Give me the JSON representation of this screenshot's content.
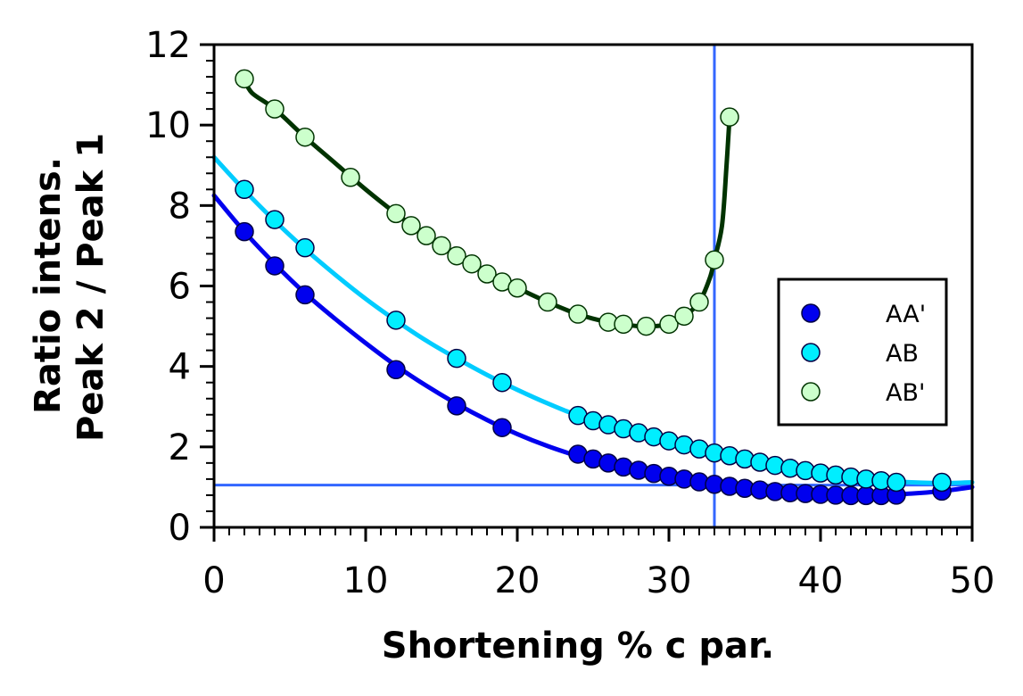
{
  "chart_data": {
    "type": "scatter",
    "title": "",
    "xlabel": "Shortening % c par.",
    "ylabel_line1": "Ratio intens.",
    "ylabel_line2": "Peak 2 / Peak 1",
    "xlim": [
      0,
      50
    ],
    "ylim": [
      0,
      12
    ],
    "x_ticks": [
      0,
      10,
      20,
      30,
      40,
      50
    ],
    "x_tick_labels": [
      "0",
      "10",
      "20",
      "30",
      "40",
      "50"
    ],
    "y_ticks": [
      0,
      2,
      4,
      6,
      8,
      10,
      12
    ],
    "y_tick_labels": [
      "0",
      "2",
      "4",
      "6",
      "8",
      "10",
      "12"
    ],
    "grid": false,
    "legend_position": "center-right",
    "reference_lines": {
      "vertical_x": 33,
      "horizontal_y": 1.05,
      "color": "#3366ff"
    },
    "series": [
      {
        "name": "AA'",
        "marker_color": "#0000ee",
        "line_color": "#0000ee",
        "points": [
          {
            "x": 2,
            "y": 7.35
          },
          {
            "x": 4,
            "y": 6.5
          },
          {
            "x": 6,
            "y": 5.78
          },
          {
            "x": 12,
            "y": 3.92
          },
          {
            "x": 16,
            "y": 3.02
          },
          {
            "x": 19,
            "y": 2.48
          },
          {
            "x": 24,
            "y": 1.82
          },
          {
            "x": 25,
            "y": 1.7
          },
          {
            "x": 26,
            "y": 1.6
          },
          {
            "x": 27,
            "y": 1.5
          },
          {
            "x": 28,
            "y": 1.42
          },
          {
            "x": 29,
            "y": 1.34
          },
          {
            "x": 30,
            "y": 1.27
          },
          {
            "x": 31,
            "y": 1.2
          },
          {
            "x": 32,
            "y": 1.13
          },
          {
            "x": 33,
            "y": 1.07
          },
          {
            "x": 34,
            "y": 1.02
          },
          {
            "x": 35,
            "y": 0.97
          },
          {
            "x": 36,
            "y": 0.93
          },
          {
            "x": 37,
            "y": 0.89
          },
          {
            "x": 38,
            "y": 0.86
          },
          {
            "x": 39,
            "y": 0.84
          },
          {
            "x": 40,
            "y": 0.82
          },
          {
            "x": 41,
            "y": 0.8
          },
          {
            "x": 42,
            "y": 0.79
          },
          {
            "x": 43,
            "y": 0.79
          },
          {
            "x": 44,
            "y": 0.79
          },
          {
            "x": 45,
            "y": 0.8
          },
          {
            "x": 48,
            "y": 0.9
          }
        ],
        "fit_curve": [
          {
            "x": 0,
            "y": 8.25
          },
          {
            "x": 2,
            "y": 7.35
          },
          {
            "x": 4,
            "y": 6.55
          },
          {
            "x": 6,
            "y": 5.82
          },
          {
            "x": 8,
            "y": 5.18
          },
          {
            "x": 10,
            "y": 4.58
          },
          {
            "x": 12,
            "y": 4.02
          },
          {
            "x": 14,
            "y": 3.52
          },
          {
            "x": 16,
            "y": 3.07
          },
          {
            "x": 18,
            "y": 2.67
          },
          {
            "x": 20,
            "y": 2.32
          },
          {
            "x": 22,
            "y": 2.02
          },
          {
            "x": 24,
            "y": 1.77
          },
          {
            "x": 26,
            "y": 1.56
          },
          {
            "x": 28,
            "y": 1.39
          },
          {
            "x": 30,
            "y": 1.24
          },
          {
            "x": 32,
            "y": 1.12
          },
          {
            "x": 34,
            "y": 1.02
          },
          {
            "x": 36,
            "y": 0.94
          },
          {
            "x": 38,
            "y": 0.88
          },
          {
            "x": 40,
            "y": 0.83
          },
          {
            "x": 42,
            "y": 0.81
          },
          {
            "x": 44,
            "y": 0.81
          },
          {
            "x": 46,
            "y": 0.84
          },
          {
            "x": 48,
            "y": 0.9
          },
          {
            "x": 50,
            "y": 1.0
          }
        ]
      },
      {
        "name": "AB",
        "marker_color": "#00eeff",
        "line_color": "#00ccff",
        "points": [
          {
            "x": 2,
            "y": 8.4
          },
          {
            "x": 4,
            "y": 7.65
          },
          {
            "x": 6,
            "y": 6.95
          },
          {
            "x": 12,
            "y": 5.15
          },
          {
            "x": 16,
            "y": 4.2
          },
          {
            "x": 19,
            "y": 3.6
          },
          {
            "x": 24,
            "y": 2.78
          },
          {
            "x": 25,
            "y": 2.65
          },
          {
            "x": 26,
            "y": 2.55
          },
          {
            "x": 27,
            "y": 2.45
          },
          {
            "x": 28,
            "y": 2.35
          },
          {
            "x": 29,
            "y": 2.25
          },
          {
            "x": 30,
            "y": 2.15
          },
          {
            "x": 31,
            "y": 2.05
          },
          {
            "x": 32,
            "y": 1.95
          },
          {
            "x": 33,
            "y": 1.85
          },
          {
            "x": 34,
            "y": 1.78
          },
          {
            "x": 35,
            "y": 1.7
          },
          {
            "x": 36,
            "y": 1.62
          },
          {
            "x": 37,
            "y": 1.54
          },
          {
            "x": 38,
            "y": 1.47
          },
          {
            "x": 39,
            "y": 1.41
          },
          {
            "x": 40,
            "y": 1.35
          },
          {
            "x": 41,
            "y": 1.3
          },
          {
            "x": 42,
            "y": 1.25
          },
          {
            "x": 43,
            "y": 1.2
          },
          {
            "x": 44,
            "y": 1.16
          },
          {
            "x": 45,
            "y": 1.12
          },
          {
            "x": 48,
            "y": 1.12
          }
        ],
        "fit_curve": [
          {
            "x": 0,
            "y": 9.2
          },
          {
            "x": 2,
            "y": 8.38
          },
          {
            "x": 4,
            "y": 7.62
          },
          {
            "x": 6,
            "y": 6.92
          },
          {
            "x": 8,
            "y": 6.28
          },
          {
            "x": 10,
            "y": 5.68
          },
          {
            "x": 12,
            "y": 5.14
          },
          {
            "x": 14,
            "y": 4.64
          },
          {
            "x": 16,
            "y": 4.2
          },
          {
            "x": 18,
            "y": 3.79
          },
          {
            "x": 20,
            "y": 3.42
          },
          {
            "x": 22,
            "y": 3.08
          },
          {
            "x": 24,
            "y": 2.78
          },
          {
            "x": 26,
            "y": 2.52
          },
          {
            "x": 28,
            "y": 2.3
          },
          {
            "x": 30,
            "y": 2.12
          },
          {
            "x": 32,
            "y": 1.96
          },
          {
            "x": 34,
            "y": 1.78
          },
          {
            "x": 36,
            "y": 1.62
          },
          {
            "x": 38,
            "y": 1.47
          },
          {
            "x": 40,
            "y": 1.35
          },
          {
            "x": 42,
            "y": 1.25
          },
          {
            "x": 44,
            "y": 1.17
          },
          {
            "x": 46,
            "y": 1.12
          },
          {
            "x": 48,
            "y": 1.1
          },
          {
            "x": 50,
            "y": 1.12
          }
        ]
      },
      {
        "name": "AB'",
        "marker_color": "#ccffcc",
        "line_color": "#003300",
        "points": [
          {
            "x": 2,
            "y": 11.15
          },
          {
            "x": 4,
            "y": 10.4
          },
          {
            "x": 6,
            "y": 9.7
          },
          {
            "x": 9,
            "y": 8.7
          },
          {
            "x": 12,
            "y": 7.8
          },
          {
            "x": 13,
            "y": 7.5
          },
          {
            "x": 14,
            "y": 7.25
          },
          {
            "x": 15,
            "y": 7.0
          },
          {
            "x": 16,
            "y": 6.75
          },
          {
            "x": 17,
            "y": 6.55
          },
          {
            "x": 18,
            "y": 6.3
          },
          {
            "x": 19,
            "y": 6.1
          },
          {
            "x": 20,
            "y": 5.95
          },
          {
            "x": 22,
            "y": 5.6
          },
          {
            "x": 24,
            "y": 5.3
          },
          {
            "x": 26,
            "y": 5.1
          },
          {
            "x": 27,
            "y": 5.05
          },
          {
            "x": 28.5,
            "y": 5.0
          },
          {
            "x": 30,
            "y": 5.05
          },
          {
            "x": 31,
            "y": 5.25
          },
          {
            "x": 32,
            "y": 5.6
          },
          {
            "x": 33,
            "y": 6.65
          },
          {
            "x": 34,
            "y": 10.2
          }
        ],
        "fit_curve": [
          {
            "x": 2,
            "y": 11.15
          },
          {
            "x": 2.5,
            "y": 10.8
          },
          {
            "x": 4,
            "y": 10.4
          },
          {
            "x": 6,
            "y": 9.7
          },
          {
            "x": 8,
            "y": 9.05
          },
          {
            "x": 10,
            "y": 8.4
          },
          {
            "x": 12,
            "y": 7.8
          },
          {
            "x": 14,
            "y": 7.25
          },
          {
            "x": 16,
            "y": 6.75
          },
          {
            "x": 18,
            "y": 6.3
          },
          {
            "x": 20,
            "y": 5.95
          },
          {
            "x": 22,
            "y": 5.6
          },
          {
            "x": 24,
            "y": 5.3
          },
          {
            "x": 26,
            "y": 5.1
          },
          {
            "x": 28,
            "y": 5.0
          },
          {
            "x": 29,
            "y": 5.0
          },
          {
            "x": 30,
            "y": 5.05
          },
          {
            "x": 31,
            "y": 5.25
          },
          {
            "x": 32,
            "y": 5.6
          },
          {
            "x": 32.7,
            "y": 6.2
          },
          {
            "x": 33,
            "y": 6.65
          },
          {
            "x": 33.5,
            "y": 7.5
          },
          {
            "x": 33.8,
            "y": 9.0
          },
          {
            "x": 34,
            "y": 10.2
          }
        ]
      }
    ]
  }
}
